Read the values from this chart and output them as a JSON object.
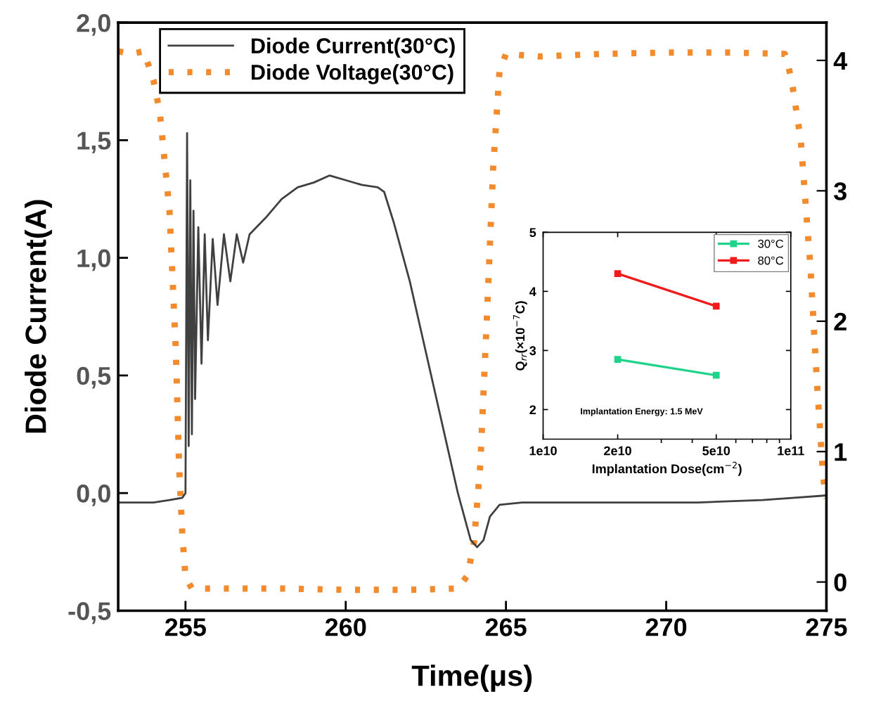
{
  "chart_data": [
    {
      "type": "line",
      "xlabel": "Time(μs)",
      "ylabel": "Diode Current(A)",
      "xlim": [
        252.9,
        275
      ],
      "xticks": [
        255,
        260,
        265,
        270,
        275
      ],
      "ylim": [
        -0.5,
        2.0
      ],
      "yticks": [
        {
          "value": -0.5,
          "label": "-0,5"
        },
        {
          "value": 0,
          "label": "0,0"
        },
        {
          "value": 0.5,
          "label": "0,5"
        },
        {
          "value": 1.0,
          "label": "1,0"
        },
        {
          "value": 1.5,
          "label": "1,5"
        },
        {
          "value": 2.0,
          "label": "2,0"
        }
      ],
      "y2lim": [
        -0.22,
        4.29
      ],
      "y2ticks": [
        0,
        1,
        2,
        3,
        4
      ],
      "legend": "top left",
      "grid": false,
      "series": [
        {
          "name": "Diode Current(30°C)",
          "color": "#404040",
          "line_style": "solid",
          "x": [
            252.9,
            253.5,
            254.0,
            254.5,
            254.9,
            255.0,
            255.05,
            255.1,
            255.15,
            255.2,
            255.25,
            255.3,
            255.4,
            255.5,
            255.6,
            255.7,
            255.85,
            256.0,
            256.2,
            256.4,
            256.6,
            256.8,
            257.0,
            257.5,
            258.0,
            258.5,
            259.0,
            259.5,
            260.0,
            260.5,
            261.0,
            261.2,
            261.5,
            262.0,
            262.5,
            263.0,
            263.5,
            263.9,
            264.1,
            264.3,
            264.5,
            264.8,
            265.5,
            267.0,
            269.0,
            271.0,
            273.0,
            274.0,
            275.0
          ],
          "values": [
            -0.04,
            -0.04,
            -0.04,
            -0.03,
            -0.02,
            0.0,
            1.53,
            0.2,
            1.33,
            0.25,
            1.2,
            0.4,
            1.13,
            0.55,
            1.1,
            0.65,
            1.08,
            0.8,
            1.1,
            0.9,
            1.1,
            0.98,
            1.1,
            1.17,
            1.25,
            1.3,
            1.32,
            1.35,
            1.33,
            1.31,
            1.3,
            1.28,
            1.15,
            0.9,
            0.6,
            0.3,
            0.0,
            -0.2,
            -0.23,
            -0.2,
            -0.1,
            -0.05,
            -0.04,
            -0.04,
            -0.04,
            -0.04,
            -0.03,
            -0.02,
            -0.01
          ]
        },
        {
          "name": "Diode Voltage(30°C)",
          "color": "#f28a2e",
          "line_style": "dotted",
          "axis": "y2",
          "x": [
            252.9,
            253.3,
            253.7,
            254.0,
            254.2,
            254.5,
            254.7,
            254.8,
            254.9,
            255.0,
            255.2,
            256.0,
            258.0,
            260.0,
            262.0,
            263.5,
            263.8,
            264.0,
            264.2,
            264.4,
            264.6,
            264.8,
            265.0,
            266.0,
            268.0,
            270.0,
            272.0,
            273.7,
            273.9,
            274.2,
            274.5,
            274.7,
            274.9,
            275.0
          ],
          "values": [
            4.07,
            4.05,
            4.07,
            3.85,
            3.6,
            2.85,
            1.77,
            0.9,
            0.37,
            0.04,
            -0.05,
            -0.05,
            -0.05,
            -0.06,
            -0.06,
            -0.05,
            0.05,
            0.3,
            0.9,
            2.0,
            3.17,
            3.92,
            4.05,
            4.03,
            4.05,
            4.06,
            4.06,
            4.05,
            3.87,
            3.39,
            2.42,
            1.55,
            0.8,
            0.64
          ]
        }
      ]
    },
    {
      "type": "line",
      "xlabel": "Implantation Dose(cm$^{−2}$)",
      "ylabel": "Q$_{rr}$(×10$^{−7}$C)",
      "log": "x",
      "xlim": [
        10000000000.0,
        100000000000.0
      ],
      "xticks": [
        {
          "value": 10000000000.0,
          "label": "1e10"
        },
        {
          "value": 20000000000.0,
          "label": "2e10"
        },
        {
          "value": 50000000000.0,
          "label": "5e10"
        },
        {
          "value": 100000000000.0,
          "label": "1e11"
        }
      ],
      "ylim": [
        1.5,
        5
      ],
      "yticks": [
        2,
        3,
        4,
        5
      ],
      "legend": "top right",
      "marker": "square",
      "grid": false,
      "annotations": [
        "Implantation Energy: 1.5 MeV"
      ],
      "x": [
        20000000000.0,
        50000000000.0
      ],
      "series": [
        {
          "name": "30°C",
          "color": "#1fd38a",
          "values": [
            2.85,
            2.58
          ]
        },
        {
          "name": "80°C",
          "color": "#f01c1c",
          "values": [
            4.3,
            3.75
          ]
        }
      ]
    }
  ]
}
